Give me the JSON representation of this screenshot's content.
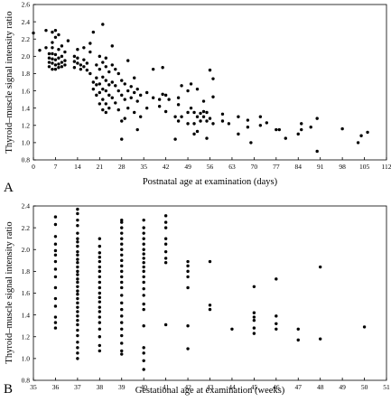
{
  "chart_data": [
    {
      "type": "scatter",
      "panel_label": "A",
      "xlabel": "Postnatal age at examination (days)",
      "ylabel": "Thyroid–muscle signal intensity ratio",
      "xlim": [
        0,
        112
      ],
      "ylim": [
        0.8,
        2.6
      ],
      "xticks": [
        0,
        7,
        14,
        21,
        28,
        35,
        42,
        49,
        56,
        63,
        70,
        77,
        84,
        91,
        98,
        105,
        112
      ],
      "xtick_labels": [
        "0",
        "7",
        "14",
        "21",
        "28",
        "35",
        "42",
        "49",
        "56",
        "63",
        "70",
        "77",
        "84",
        "91",
        "98",
        "105",
        "112"
      ],
      "yticks": [
        0.8,
        1.0,
        1.2,
        1.4,
        1.6,
        1.8,
        2.0,
        2.2,
        2.4,
        2.6
      ],
      "ytick_labels": [
        "0.8",
        "1.0",
        "1.2",
        "1.4",
        "1.6",
        "1.8",
        "2.0",
        "2.2",
        "2.4",
        "2.6"
      ],
      "grid": false,
      "points": [
        [
          0,
          2.27
        ],
        [
          2,
          2.07
        ],
        [
          4,
          2.3
        ],
        [
          4,
          2.1
        ],
        [
          5,
          2.03
        ],
        [
          5,
          1.98
        ],
        [
          5,
          1.93
        ],
        [
          5,
          1.88
        ],
        [
          6,
          2.28
        ],
        [
          6,
          2.16
        ],
        [
          6,
          2.1
        ],
        [
          6,
          2.03
        ],
        [
          6,
          1.97
        ],
        [
          6,
          1.92
        ],
        [
          6,
          1.85
        ],
        [
          7,
          2.3
        ],
        [
          7,
          2.22
        ],
        [
          7,
          2.02
        ],
        [
          7,
          1.96
        ],
        [
          7,
          1.9
        ],
        [
          7,
          1.85
        ],
        [
          8,
          2.25
        ],
        [
          8,
          2.08
        ],
        [
          8,
          1.98
        ],
        [
          8,
          1.91
        ],
        [
          8,
          1.87
        ],
        [
          9,
          2.12
        ],
        [
          9,
          2.0
        ],
        [
          9,
          1.93
        ],
        [
          9,
          1.88
        ],
        [
          10,
          2.05
        ],
        [
          10,
          1.95
        ],
        [
          10,
          1.9
        ],
        [
          11,
          2.18
        ],
        [
          13,
          2.0
        ],
        [
          13,
          1.94
        ],
        [
          13,
          1.87
        ],
        [
          14,
          2.08
        ],
        [
          14,
          1.98
        ],
        [
          14,
          1.92
        ],
        [
          15,
          1.9
        ],
        [
          15,
          1.85
        ],
        [
          16,
          2.1
        ],
        [
          16,
          1.96
        ],
        [
          16,
          1.88
        ],
        [
          17,
          1.92
        ],
        [
          17,
          1.84
        ],
        [
          18,
          2.15
        ],
        [
          18,
          2.05
        ],
        [
          18,
          1.8
        ],
        [
          19,
          2.28
        ],
        [
          19,
          1.7
        ],
        [
          19,
          1.62
        ],
        [
          20,
          1.9
        ],
        [
          20,
          1.75
        ],
        [
          20,
          1.67
        ],
        [
          20,
          1.55
        ],
        [
          21,
          2.0
        ],
        [
          21,
          1.85
        ],
        [
          21,
          1.68
        ],
        [
          21,
          1.58
        ],
        [
          21,
          1.45
        ],
        [
          22,
          2.37
        ],
        [
          22,
          1.93
        ],
        [
          22,
          1.76
        ],
        [
          22,
          1.62
        ],
        [
          22,
          1.5
        ],
        [
          22,
          1.38
        ],
        [
          23,
          1.98
        ],
        [
          23,
          1.88
        ],
        [
          23,
          1.72
        ],
        [
          23,
          1.6
        ],
        [
          23,
          1.45
        ],
        [
          23,
          1.35
        ],
        [
          24,
          1.82
        ],
        [
          24,
          1.67
        ],
        [
          24,
          1.55
        ],
        [
          24,
          1.4
        ],
        [
          25,
          2.12
        ],
        [
          25,
          1.9
        ],
        [
          25,
          1.7
        ],
        [
          25,
          1.52
        ],
        [
          26,
          1.85
        ],
        [
          26,
          1.66
        ],
        [
          26,
          1.46
        ],
        [
          27,
          1.8
        ],
        [
          27,
          1.6
        ],
        [
          27,
          1.38
        ],
        [
          28,
          1.72
        ],
        [
          28,
          1.55
        ],
        [
          28,
          1.25
        ],
        [
          28,
          1.04
        ],
        [
          29,
          1.68
        ],
        [
          29,
          1.5
        ],
        [
          29,
          1.28
        ],
        [
          30,
          1.95
        ],
        [
          30,
          1.6
        ],
        [
          30,
          1.4
        ],
        [
          31,
          1.65
        ],
        [
          31,
          1.52
        ],
        [
          32,
          1.75
        ],
        [
          32,
          1.58
        ],
        [
          32,
          1.35
        ],
        [
          33,
          1.62
        ],
        [
          33,
          1.48
        ],
        [
          33,
          1.15
        ],
        [
          34,
          1.55
        ],
        [
          34,
          1.3
        ],
        [
          36,
          1.58
        ],
        [
          36,
          1.4
        ],
        [
          38,
          1.85
        ],
        [
          38,
          1.52
        ],
        [
          40,
          1.5
        ],
        [
          40,
          1.42
        ],
        [
          41,
          1.56
        ],
        [
          41,
          1.87
        ],
        [
          42,
          1.55
        ],
        [
          42,
          1.36
        ],
        [
          43,
          1.5
        ],
        [
          45,
          1.3
        ],
        [
          45,
          1.04
        ],
        [
          46,
          1.52
        ],
        [
          46,
          1.44
        ],
        [
          46,
          1.25
        ],
        [
          47,
          1.66
        ],
        [
          47,
          1.3
        ],
        [
          49,
          1.6
        ],
        [
          49,
          1.35
        ],
        [
          49,
          1.22
        ],
        [
          50,
          1.68
        ],
        [
          50,
          1.4
        ],
        [
          51,
          1.35
        ],
        [
          51,
          1.22
        ],
        [
          51,
          1.1
        ],
        [
          52,
          1.62
        ],
        [
          52,
          1.3
        ],
        [
          52,
          1.13
        ],
        [
          53,
          1.34
        ],
        [
          53,
          1.25
        ],
        [
          54,
          1.48
        ],
        [
          54,
          1.36
        ],
        [
          54,
          1.3
        ],
        [
          55,
          1.35
        ],
        [
          55,
          1.25
        ],
        [
          55,
          1.05
        ],
        [
          56,
          1.84
        ],
        [
          56,
          1.28
        ],
        [
          57,
          1.74
        ],
        [
          57,
          1.53
        ],
        [
          57,
          1.22
        ],
        [
          60,
          1.33
        ],
        [
          60,
          1.25
        ],
        [
          62,
          1.22
        ],
        [
          65,
          1.3
        ],
        [
          65,
          1.1
        ],
        [
          68,
          1.26
        ],
        [
          68,
          1.18
        ],
        [
          69,
          1.0
        ],
        [
          72,
          1.2
        ],
        [
          72,
          1.3
        ],
        [
          74,
          1.23
        ],
        [
          77,
          1.15
        ],
        [
          78,
          1.15
        ],
        [
          80,
          1.05
        ],
        [
          84,
          1.1
        ],
        [
          85,
          1.15
        ],
        [
          85,
          1.22
        ],
        [
          88,
          1.18
        ],
        [
          90,
          1.28
        ],
        [
          90,
          0.9
        ],
        [
          98,
          1.16
        ],
        [
          103,
          1.0
        ],
        [
          104,
          1.08
        ],
        [
          106,
          1.12
        ]
      ]
    },
    {
      "type": "scatter",
      "panel_label": "B",
      "xlabel": "Gestational age at examination (weeks)",
      "ylabel": "Thyroid–muscle signal intensity ratio",
      "xlim": [
        35,
        51
      ],
      "ylim": [
        0.8,
        2.4
      ],
      "xticks": [
        35,
        36,
        37,
        38,
        39,
        40,
        41,
        42,
        43,
        44,
        45,
        46,
        47,
        48,
        49,
        50,
        51
      ],
      "xtick_labels": [
        "35",
        "36",
        "37",
        "38",
        "39",
        "40",
        "41",
        "42",
        "43",
        "44",
        "45",
        "46",
        "47",
        "48",
        "49",
        "50",
        "51"
      ],
      "yticks": [
        0.8,
        1.0,
        1.2,
        1.4,
        1.6,
        1.8,
        2.0,
        2.2,
        2.4
      ],
      "ytick_labels": [
        "0.8",
        "1.0",
        "1.2",
        "1.4",
        "1.6",
        "1.8",
        "2.0",
        "2.2",
        "2.4"
      ],
      "grid": false,
      "points": [
        [
          36,
          2.3
        ],
        [
          36,
          2.23
        ],
        [
          36,
          2.12
        ],
        [
          36,
          2.05
        ],
        [
          36,
          1.99
        ],
        [
          36,
          1.95
        ],
        [
          36,
          1.89
        ],
        [
          36,
          1.82
        ],
        [
          36,
          1.75
        ],
        [
          36,
          1.65
        ],
        [
          36,
          1.55
        ],
        [
          36,
          1.48
        ],
        [
          36,
          1.38
        ],
        [
          36,
          1.33
        ],
        [
          36,
          1.28
        ],
        [
          37,
          2.37
        ],
        [
          37,
          2.33
        ],
        [
          37,
          2.27
        ],
        [
          37,
          2.22
        ],
        [
          37,
          2.15
        ],
        [
          37,
          2.1
        ],
        [
          37,
          2.07
        ],
        [
          37,
          2.03
        ],
        [
          37,
          1.98
        ],
        [
          37,
          1.95
        ],
        [
          37,
          1.91
        ],
        [
          37,
          1.88
        ],
        [
          37,
          1.84
        ],
        [
          37,
          1.8
        ],
        [
          37,
          1.77
        ],
        [
          37,
          1.73
        ],
        [
          37,
          1.7
        ],
        [
          37,
          1.66
        ],
        [
          37,
          1.62
        ],
        [
          37,
          1.59
        ],
        [
          37,
          1.55
        ],
        [
          37,
          1.51
        ],
        [
          37,
          1.47
        ],
        [
          37,
          1.43
        ],
        [
          37,
          1.39
        ],
        [
          37,
          1.35
        ],
        [
          37,
          1.31
        ],
        [
          37,
          1.26
        ],
        [
          37,
          1.21
        ],
        [
          37,
          1.15
        ],
        [
          37,
          1.1
        ],
        [
          37,
          1.05
        ],
        [
          37,
          1.0
        ],
        [
          38,
          2.1
        ],
        [
          38,
          2.03
        ],
        [
          38,
          1.97
        ],
        [
          38,
          1.93
        ],
        [
          38,
          1.89
        ],
        [
          38,
          1.84
        ],
        [
          38,
          1.8
        ],
        [
          38,
          1.75
        ],
        [
          38,
          1.7
        ],
        [
          38,
          1.65
        ],
        [
          38,
          1.6
        ],
        [
          38,
          1.56
        ],
        [
          38,
          1.52
        ],
        [
          38,
          1.47
        ],
        [
          38,
          1.43
        ],
        [
          38,
          1.38
        ],
        [
          38,
          1.33
        ],
        [
          38,
          1.27
        ],
        [
          38,
          1.2
        ],
        [
          38,
          1.12
        ],
        [
          38,
          1.07
        ],
        [
          39,
          2.27
        ],
        [
          39,
          2.25
        ],
        [
          39,
          2.2
        ],
        [
          39,
          2.15
        ],
        [
          39,
          2.1
        ],
        [
          39,
          2.05
        ],
        [
          39,
          2.0
        ],
        [
          39,
          1.95
        ],
        [
          39,
          1.9
        ],
        [
          39,
          1.85
        ],
        [
          39,
          1.8
        ],
        [
          39,
          1.75
        ],
        [
          39,
          1.7
        ],
        [
          39,
          1.65
        ],
        [
          39,
          1.58
        ],
        [
          39,
          1.51
        ],
        [
          39,
          1.45
        ],
        [
          39,
          1.39
        ],
        [
          39,
          1.33
        ],
        [
          39,
          1.27
        ],
        [
          39,
          1.21
        ],
        [
          39,
          1.14
        ],
        [
          39,
          1.07
        ],
        [
          39,
          1.04
        ],
        [
          40,
          2.27
        ],
        [
          40,
          2.2
        ],
        [
          40,
          2.15
        ],
        [
          40,
          2.1
        ],
        [
          40,
          2.05
        ],
        [
          40,
          2.0
        ],
        [
          40,
          1.96
        ],
        [
          40,
          1.92
        ],
        [
          40,
          1.88
        ],
        [
          40,
          1.84
        ],
        [
          40,
          1.8
        ],
        [
          40,
          1.75
        ],
        [
          40,
          1.7
        ],
        [
          40,
          1.64
        ],
        [
          40,
          1.58
        ],
        [
          40,
          1.5
        ],
        [
          40,
          1.45
        ],
        [
          40,
          1.3
        ],
        [
          40,
          1.1
        ],
        [
          40,
          1.05
        ],
        [
          40,
          0.98
        ],
        [
          40,
          0.9
        ],
        [
          41,
          2.31
        ],
        [
          41,
          2.25
        ],
        [
          41,
          2.2
        ],
        [
          41,
          2.1
        ],
        [
          41,
          2.05
        ],
        [
          41,
          1.98
        ],
        [
          41,
          1.92
        ],
        [
          41,
          1.88
        ],
        [
          41,
          1.31
        ],
        [
          42,
          1.89
        ],
        [
          42,
          1.85
        ],
        [
          42,
          1.8
        ],
        [
          42,
          1.75
        ],
        [
          42,
          1.65
        ],
        [
          42,
          1.3
        ],
        [
          42,
          1.09
        ],
        [
          43,
          1.89
        ],
        [
          43,
          1.49
        ],
        [
          43,
          1.45
        ],
        [
          44,
          1.27
        ],
        [
          45,
          1.66
        ],
        [
          45,
          1.42
        ],
        [
          45,
          1.38
        ],
        [
          45,
          1.35
        ],
        [
          45,
          1.28
        ],
        [
          45,
          1.23
        ],
        [
          46,
          1.73
        ],
        [
          46,
          1.39
        ],
        [
          46,
          1.32
        ],
        [
          46,
          1.27
        ],
        [
          47,
          1.27
        ],
        [
          47,
          1.17
        ],
        [
          48,
          1.84
        ],
        [
          48,
          1.18
        ],
        [
          50,
          1.29
        ]
      ]
    }
  ]
}
